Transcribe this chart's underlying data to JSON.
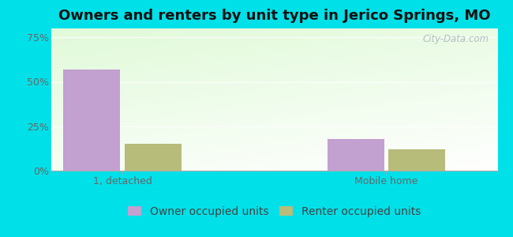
{
  "title": "Owners and renters by unit type in Jerico Springs, MO",
  "categories": [
    "1, detached",
    "Mobile home"
  ],
  "owner_values": [
    57,
    18
  ],
  "renter_values": [
    15,
    12
  ],
  "owner_color": "#c2a0d0",
  "renter_color": "#b8bc7a",
  "owner_label": "Owner occupied units",
  "renter_label": "Renter occupied units",
  "yticks": [
    0,
    25,
    50,
    75
  ],
  "ytick_labels": [
    "0%",
    "25%",
    "50%",
    "75%"
  ],
  "ylim": [
    0,
    80
  ],
  "background_outer": "#00e0e8",
  "watermark": "City-Data.com",
  "bar_width": 0.28,
  "title_fontsize": 13,
  "legend_fontsize": 10,
  "tick_fontsize": 9,
  "group_positions": [
    0.35,
    1.65
  ],
  "xlim": [
    0,
    2.2
  ]
}
